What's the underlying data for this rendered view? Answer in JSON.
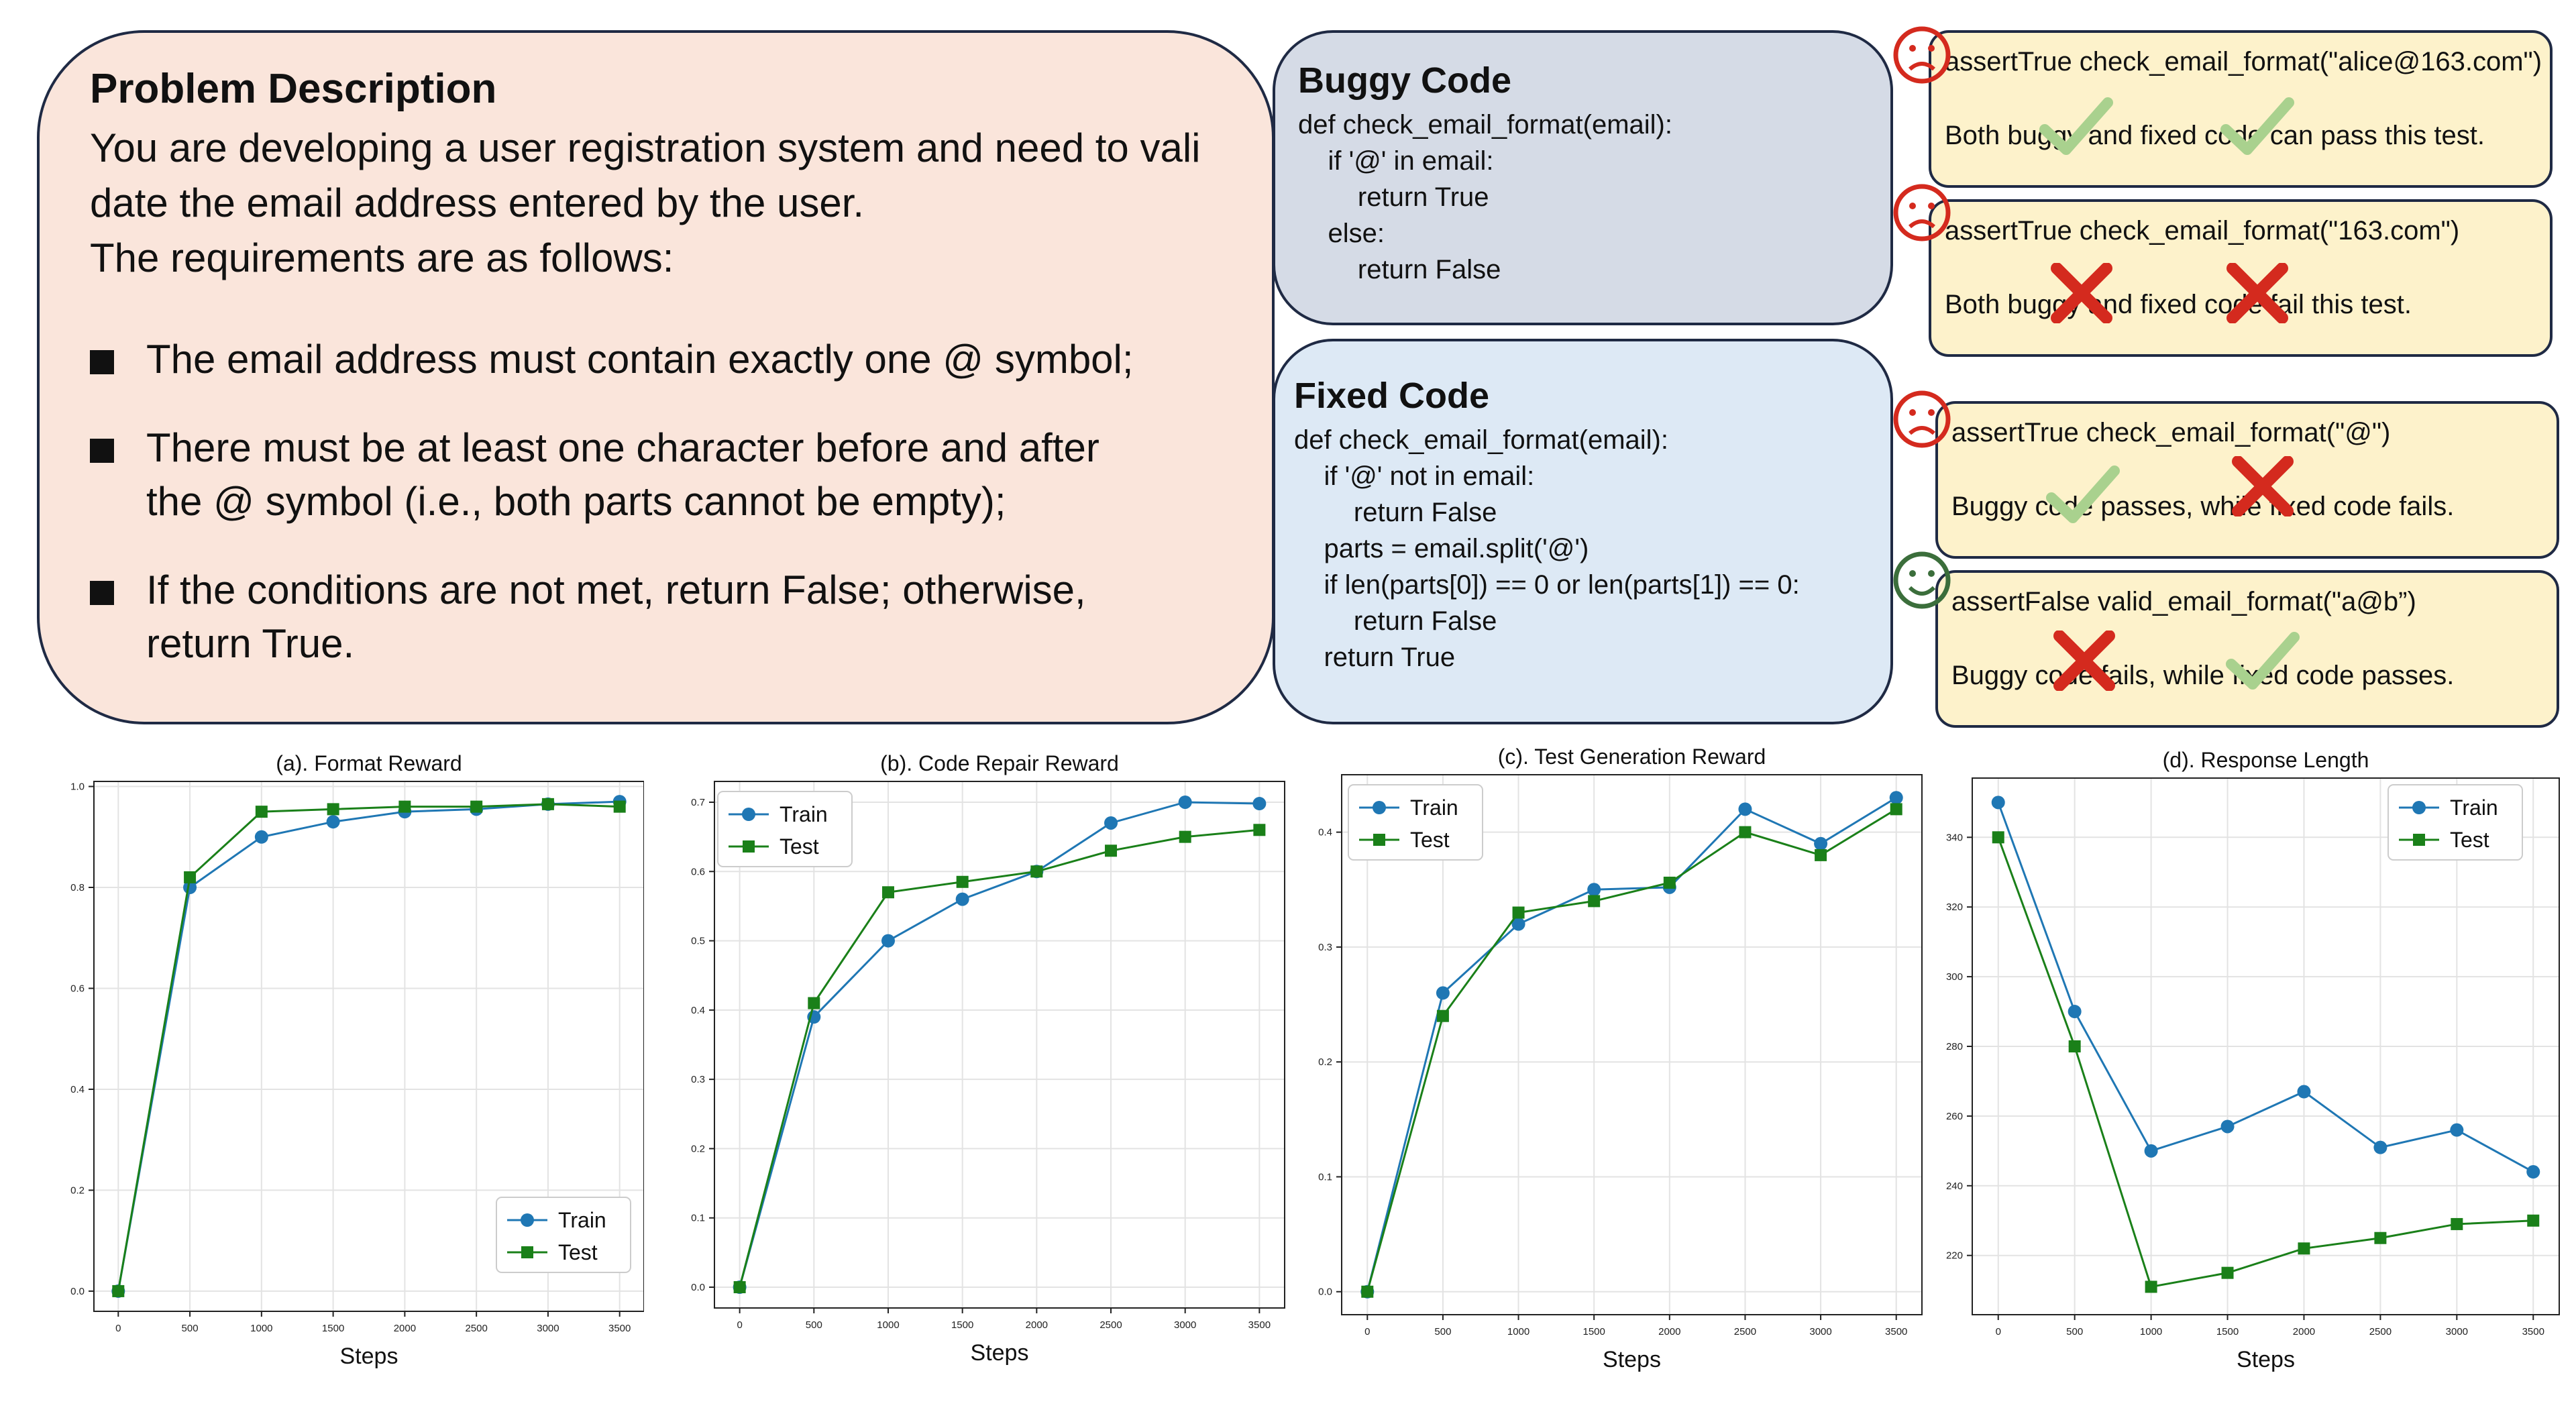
{
  "problem": {
    "title": "Problem Description",
    "lines": [
      "You are developing a user registration system and need to vali",
      "date the email address entered by the user.",
      "The requirements are as follows:"
    ],
    "bullets": [
      [
        "The email address must contain exactly one @ symbol;"
      ],
      [
        "There must be at least one character before and after",
        "the @ symbol (i.e., both parts cannot be empty);"
      ],
      [
        "If the conditions are not met, return False; otherwise,",
        "return True."
      ]
    ]
  },
  "buggy": {
    "title": "Buggy Code",
    "lines": [
      "def check_email_format(email):",
      "    if '@' in email:",
      "        return True",
      "    else:",
      "        return False"
    ]
  },
  "fixed": {
    "title": "Fixed Code",
    "lines": [
      "def check_email_format(email):",
      "    if '@' not in email:",
      "        return False",
      "    parts = email.split('@')",
      "    if len(parts[0]) == 0 or len(parts[1]) == 0:",
      "        return False",
      "    return True"
    ]
  },
  "tests": [
    {
      "assert": "assertTrue check_email_format(\"alice@163.com\")",
      "desc": "Both buggy and fixed code can pass this test.",
      "face": "sad-face-icon",
      "marks": [
        "check-icon",
        "check-icon"
      ]
    },
    {
      "assert": "assertTrue check_email_format(\"163.com\")",
      "desc": "Both buggy and fixed code fail this test.",
      "face": "sad-face-icon",
      "marks": [
        "cross-icon",
        "cross-icon"
      ]
    },
    {
      "assert": "assertTrue check_email_format(\"@\")",
      "desc": "Buggy code passes, while fixed code fails.",
      "face": "sad-face-icon",
      "marks": [
        "check-icon",
        "cross-icon"
      ]
    },
    {
      "assert": "assertFalse valid_email_format(\"a@b”)",
      "desc": "Buggy code fails, while fixed code passes.",
      "face": "happy-face-icon",
      "marks": [
        "cross-icon",
        "check-icon"
      ]
    }
  ],
  "colors": {
    "train": "#1f77b4",
    "test": "#1a8019",
    "cross": "#d42a1e",
    "check": "#a9d18e",
    "sad_face": "#d42a1e",
    "happy_face": "#3b6e3b"
  },
  "chart_data": [
    {
      "type": "line",
      "title": "(a). Format Reward",
      "xlabel": "Steps",
      "ylabel": "",
      "x": [
        0,
        500,
        1000,
        1500,
        2000,
        2500,
        3000,
        3500
      ],
      "xticks": [
        0,
        500,
        1000,
        1500,
        2000,
        2500,
        3000,
        3500
      ],
      "yticks": [
        0.0,
        0.2,
        0.4,
        0.6,
        0.8,
        1.0
      ],
      "ylim": [
        -0.04,
        1.01
      ],
      "xlim": [
        -170,
        3670
      ],
      "legend": "lower-right",
      "grid": true,
      "series": [
        {
          "name": "Train",
          "marker": "circle",
          "values": [
            0.0,
            0.8,
            0.9,
            0.93,
            0.95,
            0.955,
            0.965,
            0.97
          ]
        },
        {
          "name": "Test",
          "marker": "square",
          "values": [
            0.0,
            0.82,
            0.95,
            0.955,
            0.96,
            0.96,
            0.965,
            0.96
          ]
        }
      ]
    },
    {
      "type": "line",
      "title": "(b). Code Repair Reward",
      "xlabel": "Steps",
      "ylabel": "",
      "x": [
        0,
        500,
        1000,
        1500,
        2000,
        2500,
        3000,
        3500
      ],
      "xticks": [
        0,
        500,
        1000,
        1500,
        2000,
        2500,
        3000,
        3500
      ],
      "yticks": [
        0.0,
        0.1,
        0.2,
        0.3,
        0.4,
        0.5,
        0.6,
        0.7
      ],
      "ylim": [
        -0.03,
        0.73
      ],
      "xlim": [
        -170,
        3670
      ],
      "legend": "top-left",
      "grid": true,
      "series": [
        {
          "name": "Train",
          "marker": "circle",
          "values": [
            0.0,
            0.39,
            0.5,
            0.56,
            0.6,
            0.67,
            0.7,
            0.698
          ]
        },
        {
          "name": "Test",
          "marker": "square",
          "values": [
            0.0,
            0.41,
            0.57,
            0.585,
            0.6,
            0.63,
            0.65,
            0.66
          ]
        }
      ]
    },
    {
      "type": "line",
      "title": "(c). Test Generation Reward",
      "xlabel": "Steps",
      "ylabel": "",
      "x": [
        0,
        500,
        1000,
        1500,
        2000,
        2500,
        3000,
        3500
      ],
      "xticks": [
        0,
        500,
        1000,
        1500,
        2000,
        2500,
        3000,
        3500
      ],
      "yticks": [
        0.0,
        0.1,
        0.2,
        0.3,
        0.4
      ],
      "ylim": [
        -0.02,
        0.45
      ],
      "xlim": [
        -170,
        3670
      ],
      "legend": "top-left",
      "grid": true,
      "series": [
        {
          "name": "Train",
          "marker": "circle",
          "values": [
            0.0,
            0.26,
            0.32,
            0.35,
            0.352,
            0.42,
            0.39,
            0.43
          ]
        },
        {
          "name": "Test",
          "marker": "square",
          "values": [
            0.0,
            0.24,
            0.33,
            0.34,
            0.356,
            0.4,
            0.38,
            0.42
          ]
        }
      ]
    },
    {
      "type": "line",
      "title": "(d). Response Length",
      "xlabel": "Steps",
      "ylabel": "",
      "x": [
        0,
        500,
        1000,
        1500,
        2000,
        2500,
        3000,
        3500
      ],
      "xticks": [
        0,
        500,
        1000,
        1500,
        2000,
        2500,
        3000,
        3500
      ],
      "yticks": [
        220,
        240,
        260,
        280,
        300,
        320,
        340
      ],
      "ylim": [
        203,
        357
      ],
      "xlim": [
        -170,
        3670
      ],
      "legend": "top-right",
      "grid": true,
      "series": [
        {
          "name": "Train",
          "marker": "circle",
          "values": [
            350,
            290,
            250,
            257,
            267,
            251,
            256,
            244
          ]
        },
        {
          "name": "Test",
          "marker": "square",
          "values": [
            340,
            280,
            211,
            215,
            222,
            225,
            229,
            230
          ]
        }
      ]
    }
  ]
}
